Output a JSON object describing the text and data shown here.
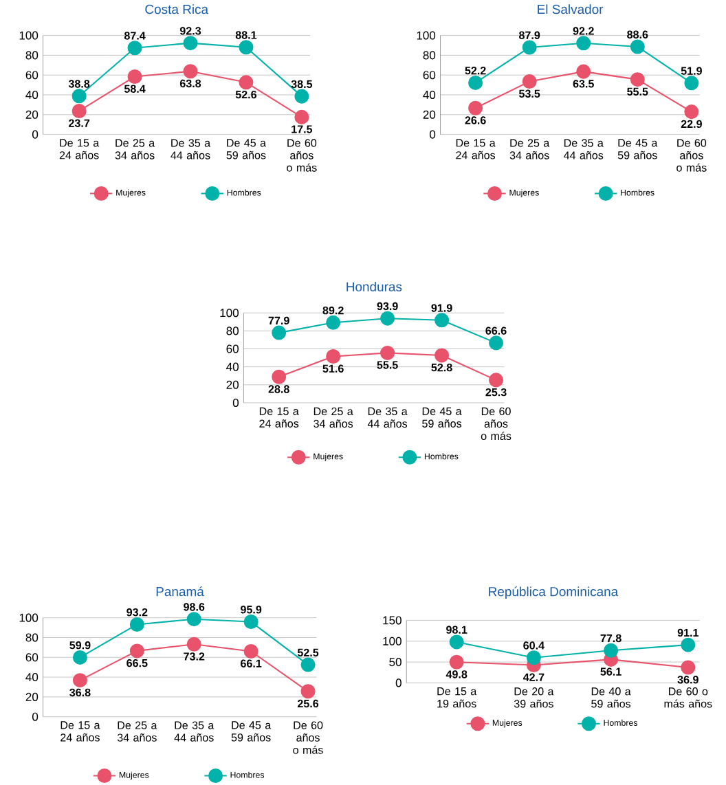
{
  "chart_data": [
    {
      "type": "line",
      "title": "Costa Rica",
      "categories": [
        "De 15 a 24 años",
        "De 25 a 34 años",
        "De 35 a 44 años",
        "De 45 a 59 años",
        "De 60 años o más"
      ],
      "ylim": [
        0,
        100
      ],
      "yticks": [
        0,
        20,
        40,
        60,
        80,
        100
      ],
      "grid": "y",
      "legend": "bottom",
      "marker": "circle",
      "data_labels": true,
      "series": [
        {
          "name": "Mujeres",
          "color": "#e8526a",
          "values": [
            23.7,
            58.4,
            63.8,
            52.6,
            17.5
          ]
        },
        {
          "name": "Hombres",
          "color": "#00b2a9",
          "values": [
            38.8,
            87.4,
            92.3,
            88.1,
            38.5
          ]
        }
      ]
    },
    {
      "type": "line",
      "title": "El Salvador",
      "categories": [
        "De 15 a 24 años",
        "De 25 a 34 años",
        "De 35 a 44 años",
        "De 45 a 59 años",
        "De 60 años o más"
      ],
      "ylim": [
        0,
        100
      ],
      "yticks": [
        0,
        20,
        40,
        60,
        80,
        100
      ],
      "grid": "y",
      "legend": "bottom",
      "marker": "circle",
      "data_labels": true,
      "series": [
        {
          "name": "Mujeres",
          "color": "#e8526a",
          "values": [
            26.6,
            53.5,
            63.5,
            55.5,
            22.9
          ]
        },
        {
          "name": "Hombres",
          "color": "#00b2a9",
          "values": [
            52.2,
            87.9,
            92.2,
            88.6,
            51.9
          ]
        }
      ]
    },
    {
      "type": "line",
      "title": "Honduras",
      "categories": [
        "De 15 a 24 años",
        "De 25 a 34 años",
        "De 35 a 44 años",
        "De 45 a 59 años",
        "De 60 años o más"
      ],
      "ylim": [
        0,
        100
      ],
      "yticks": [
        0,
        20,
        40,
        60,
        80,
        100
      ],
      "grid": "y",
      "legend": "bottom",
      "marker": "circle",
      "data_labels": true,
      "series": [
        {
          "name": "Mujeres",
          "color": "#e8526a",
          "values": [
            28.8,
            51.6,
            55.5,
            52.8,
            25.3
          ]
        },
        {
          "name": "Hombres",
          "color": "#00b2a9",
          "values": [
            77.9,
            89.2,
            93.9,
            91.9,
            66.6
          ]
        }
      ]
    },
    {
      "type": "line",
      "title": "Panamá",
      "categories": [
        "De 15 a 24 años",
        "De 25 a 34 años",
        "De 35 a 44 años",
        "De 45 a 59 años",
        "De 60 años o más"
      ],
      "ylim": [
        0,
        100
      ],
      "yticks": [
        0,
        20,
        40,
        60,
        80,
        100
      ],
      "grid": "y",
      "legend": "bottom",
      "marker": "circle",
      "data_labels": true,
      "series": [
        {
          "name": "Mujeres",
          "color": "#e8526a",
          "values": [
            36.8,
            66.5,
            73.2,
            66.1,
            25.6
          ]
        },
        {
          "name": "Hombres",
          "color": "#00b2a9",
          "values": [
            59.9,
            93.2,
            98.6,
            95.9,
            52.5
          ]
        }
      ]
    },
    {
      "type": "line",
      "title": "República Dominicana",
      "categories": [
        "De 15 a 19 años",
        "De 20 a 39 años",
        "De 40 a 59 años",
        "De 60 o más años"
      ],
      "ylim": [
        0,
        150
      ],
      "yticks": [
        0,
        50,
        100,
        150
      ],
      "grid": "y",
      "legend": "bottom",
      "marker": "circle",
      "data_labels": true,
      "series": [
        {
          "name": "Mujeres",
          "color": "#e8526a",
          "values": [
            49.8,
            42.7,
            56.1,
            36.9
          ]
        },
        {
          "name": "Hombres",
          "color": "#00b2a9",
          "values": [
            98.1,
            60.4,
            77.8,
            91.1
          ]
        }
      ]
    }
  ]
}
